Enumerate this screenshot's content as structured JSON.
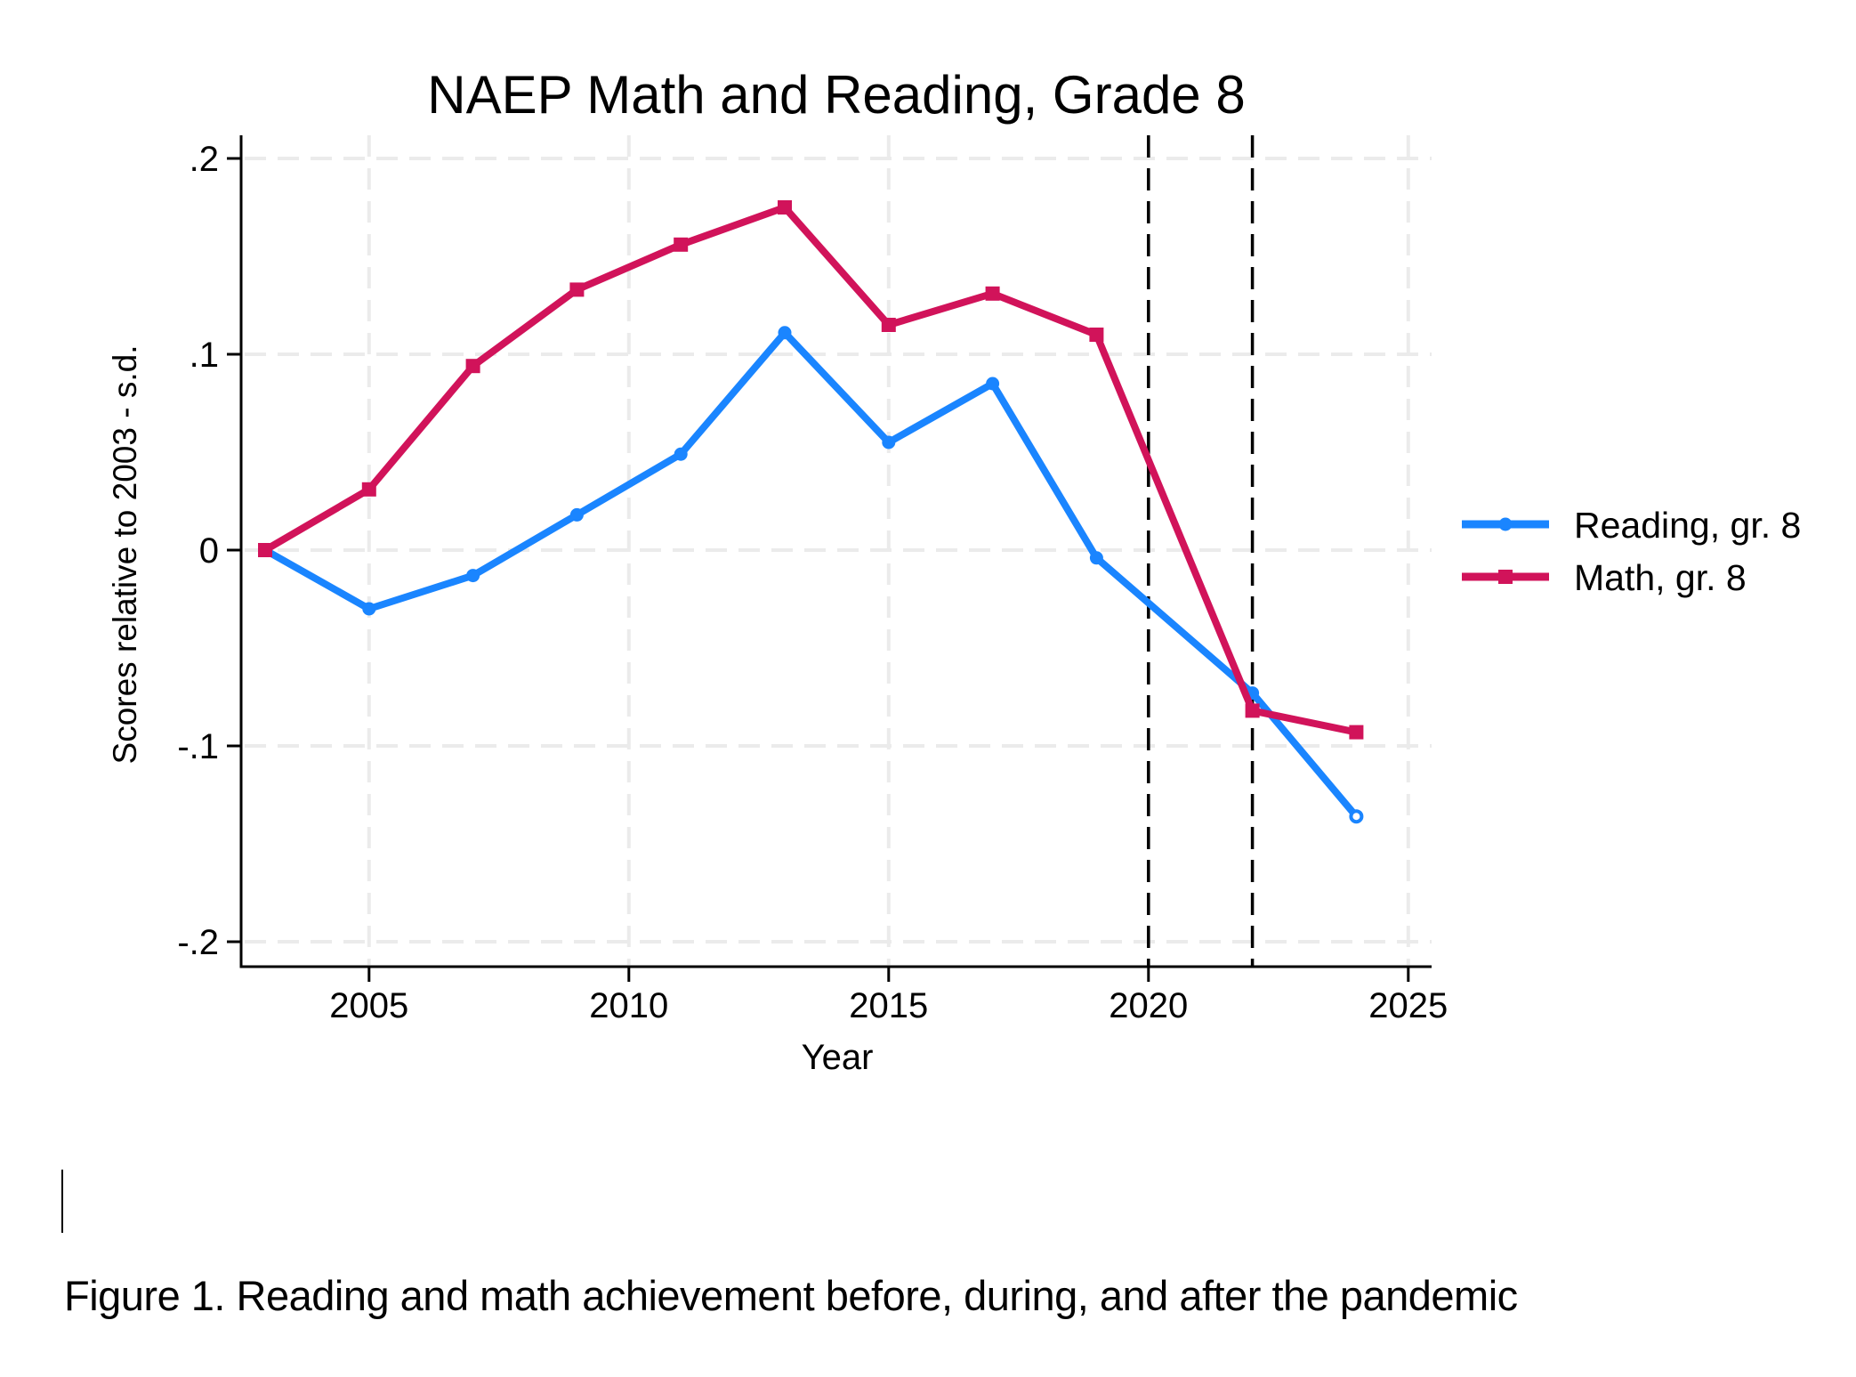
{
  "colors": {
    "reading": "#1A85FF",
    "math": "#D1135A",
    "grid": "#EBEBEB",
    "axis": "#000000",
    "event_line": "#000000"
  },
  "caption": "Figure 1.  Reading and math achievement before, during, and after the pandemic",
  "chart_data": {
    "type": "line",
    "title": "NAEP Math and Reading, Grade 8",
    "xlabel": "Year",
    "ylabel": "Scores relative to 2003 - s.d.",
    "xlim": [
      2002.2,
      2025.5
    ],
    "ylim": [
      -0.21,
      0.21
    ],
    "xticks": [
      2005,
      2010,
      2015,
      2020,
      2025
    ],
    "xtick_labels": [
      "2005",
      "2010",
      "2015",
      "2020",
      "2025"
    ],
    "yticks": [
      0.2,
      0.1,
      0,
      -0.1,
      -0.2
    ],
    "ytick_labels": [
      ".2",
      ".1",
      "0",
      "-.1",
      "-.2"
    ],
    "grid": true,
    "vertical_reference_lines": [
      2020,
      2022
    ],
    "legend_position": "right",
    "series": [
      {
        "name": "Reading, gr. 8",
        "marker": "circle",
        "x": [
          2003,
          2005,
          2007,
          2009,
          2011,
          2013,
          2015,
          2017,
          2019,
          2022,
          2024
        ],
        "values": [
          0,
          -0.03,
          -0.013,
          0.018,
          0.049,
          0.111,
          0.055,
          0.085,
          -0.004,
          -0.073,
          -0.136
        ]
      },
      {
        "name": "Math, gr. 8",
        "marker": "square",
        "x": [
          2003,
          2005,
          2007,
          2009,
          2011,
          2013,
          2015,
          2017,
          2019,
          2022,
          2024
        ],
        "values": [
          0,
          0.031,
          0.094,
          0.133,
          0.156,
          0.175,
          0.115,
          0.131,
          0.11,
          -0.082,
          -0.093
        ]
      }
    ]
  }
}
